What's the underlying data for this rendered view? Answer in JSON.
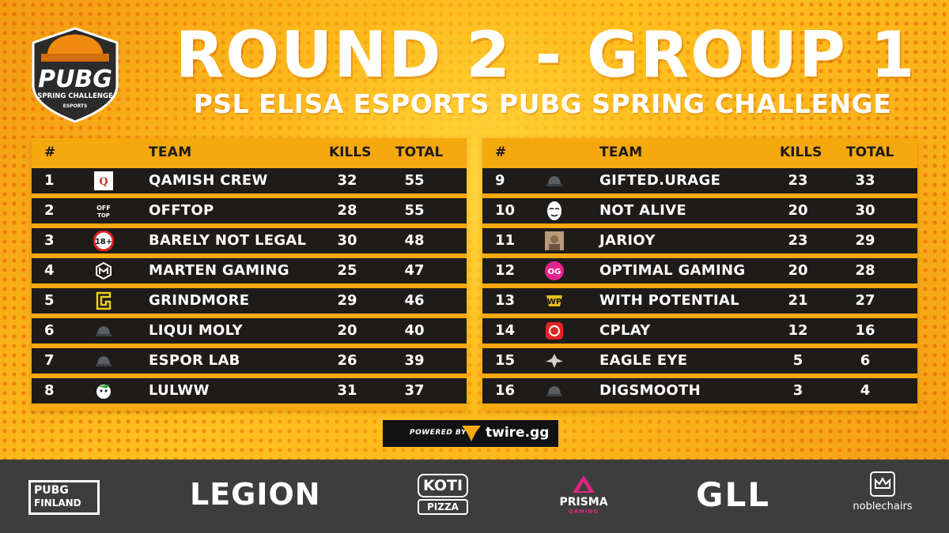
{
  "header": {
    "title": "ROUND 2 - GROUP 1",
    "subtitle": "PSL ELISA ESPORTS PUBG SPRING CHALLENGE",
    "logo_main": "PUBG",
    "logo_sub": "SPRING CHALLENGE",
    "logo_tag": "ESPORTS"
  },
  "columns": {
    "rank": "#",
    "team": "TEAM",
    "kills": "KILLS",
    "total": "TOTAL"
  },
  "standings_left": [
    {
      "rank": "1",
      "team": "QAMISH CREW",
      "kills": "32",
      "total": "55",
      "icon": "qamish-logo"
    },
    {
      "rank": "2",
      "team": "OFFTOP",
      "kills": "28",
      "total": "55",
      "icon": "offtop-logo"
    },
    {
      "rank": "3",
      "team": "BARELY NOT LEGAL",
      "kills": "30",
      "total": "48",
      "icon": "18-plus-logo"
    },
    {
      "rank": "4",
      "team": "MARTEN GAMING",
      "kills": "25",
      "total": "47",
      "icon": "marten-logo"
    },
    {
      "rank": "5",
      "team": "GRINDMORE",
      "kills": "29",
      "total": "46",
      "icon": "grindmore-logo"
    },
    {
      "rank": "6",
      "team": "LIQUI MOLY",
      "kills": "20",
      "total": "40",
      "icon": "helmet-icon"
    },
    {
      "rank": "7",
      "team": "ESPOR LAB",
      "kills": "26",
      "total": "39",
      "icon": "helmet-icon"
    },
    {
      "rank": "8",
      "team": "LULWW",
      "kills": "31",
      "total": "37",
      "icon": "lulww-logo"
    }
  ],
  "standings_right": [
    {
      "rank": "9",
      "team": "GIFTED.URAGE",
      "kills": "23",
      "total": "33",
      "icon": "helmet-icon"
    },
    {
      "rank": "10",
      "team": "NOT ALIVE",
      "kills": "20",
      "total": "30",
      "icon": "mask-logo"
    },
    {
      "rank": "11",
      "team": "JARIOY",
      "kills": "23",
      "total": "29",
      "icon": "photo-logo"
    },
    {
      "rank": "12",
      "team": "OPTIMAL GAMING",
      "kills": "20",
      "total": "28",
      "icon": "og-logo"
    },
    {
      "rank": "13",
      "team": "WITH POTENTIAL",
      "kills": "21",
      "total": "27",
      "icon": "wp-logo"
    },
    {
      "rank": "14",
      "team": "CPLAY",
      "kills": "12",
      "total": "16",
      "icon": "cplay-logo"
    },
    {
      "rank": "15",
      "team": "EAGLE EYE",
      "kills": "5",
      "total": "6",
      "icon": "eagle-logo"
    },
    {
      "rank": "16",
      "team": "DIGSMOOTH",
      "kills": "3",
      "total": "4",
      "icon": "helmet-icon"
    }
  ],
  "powered": {
    "label": "POWERED BY",
    "brand": "twire.gg"
  },
  "sponsors": {
    "pubg_finland_1": "PUBG",
    "pubg_finland_2": "FINLAND",
    "legion": "LEGION",
    "koti": "KOTI",
    "koti_pizza": "PIZZA",
    "prisma": "PRISMA",
    "prisma_gaming": "GAMING",
    "gll": "GLL",
    "noblechairs": "noblechairs"
  },
  "colors": {
    "orange": "#f6a80f",
    "row_dark": "#1e1b19",
    "footer": "#3d3d3d"
  }
}
